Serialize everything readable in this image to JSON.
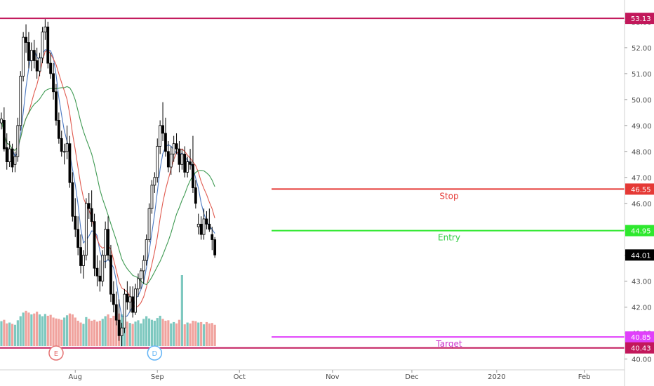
{
  "chart_data": {
    "type": "candlestick",
    "y_range": [
      39.8,
      53.35
    ],
    "y_ticks": [
      "40.00",
      "41.00",
      "42.00",
      "43.00",
      "44.00",
      "45.00",
      "46.00",
      "47.00",
      "48.00",
      "49.00",
      "50.00",
      "51.00",
      "52.00",
      "53.00"
    ],
    "x_ticks": [
      {
        "label": "Aug",
        "bar": 27
      },
      {
        "label": "Sep",
        "bar": 57
      },
      {
        "label": "Oct",
        "bar": 87
      },
      {
        "label": "Nov",
        "bar": 121
      },
      {
        "label": "Dec",
        "bar": 150
      },
      {
        "label": "2020",
        "bar": 181
      },
      {
        "label": "Feb",
        "bar": 213
      }
    ],
    "x_bar_span": 232,
    "price_tags": [
      {
        "value": "53.13",
        "color": "#c2185b"
      },
      {
        "value": "46.55",
        "color": "#e53935"
      },
      {
        "value": "44.95",
        "color": "#2ee82e"
      },
      {
        "value": "44.01",
        "color": "#000000"
      },
      {
        "value": "40.85",
        "color": "#e040fb"
      },
      {
        "value": "40.43",
        "color": "#c2185b"
      }
    ],
    "levels": [
      {
        "label": "",
        "value": 53.13,
        "color": "#c2185b",
        "full": true
      },
      {
        "label": "Stop",
        "value": 46.55,
        "color": "#e53935",
        "full": false
      },
      {
        "label": "Entry",
        "value": 44.95,
        "color": "#2ee82e",
        "full": false
      },
      {
        "label": "Target",
        "value": 40.85,
        "color": "#e040fb",
        "full": false
      },
      {
        "label": "",
        "value": 40.43,
        "color": "#c2185b",
        "full": true
      }
    ],
    "events": [
      {
        "label": "E",
        "bar": 20,
        "color": "#e57373"
      },
      {
        "label": "D",
        "bar": 56,
        "color": "#64b5f6"
      }
    ],
    "candles": [
      [
        49.1,
        49.5,
        48.85,
        49.25
      ],
      [
        49.2,
        49.7,
        48.0,
        48.1
      ],
      [
        48.15,
        48.7,
        47.3,
        47.6
      ],
      [
        47.6,
        48.4,
        47.4,
        48.1
      ],
      [
        48.1,
        48.3,
        47.2,
        47.4
      ],
      [
        47.5,
        48.0,
        47.2,
        47.8
      ],
      [
        47.8,
        49.3,
        47.6,
        49.0
      ],
      [
        49.0,
        51.1,
        48.8,
        50.9
      ],
      [
        50.9,
        52.6,
        50.7,
        52.4
      ],
      [
        52.4,
        52.9,
        51.8,
        52.2
      ],
      [
        52.2,
        52.6,
        51.2,
        51.5
      ],
      [
        51.5,
        52.2,
        51.1,
        51.9
      ],
      [
        51.9,
        52.3,
        51.2,
        51.5
      ],
      [
        51.5,
        52.0,
        50.8,
        51.1
      ],
      [
        51.1,
        51.8,
        50.9,
        51.6
      ],
      [
        51.6,
        52.8,
        51.4,
        52.6
      ],
      [
        52.6,
        53.1,
        52.3,
        52.8
      ],
      [
        52.8,
        53.0,
        51.2,
        51.4
      ],
      [
        51.4,
        51.8,
        50.8,
        51.0
      ],
      [
        51.0,
        51.4,
        50.0,
        50.3
      ],
      [
        50.3,
        50.6,
        49.0,
        49.2
      ],
      [
        49.2,
        49.5,
        48.3,
        48.5
      ],
      [
        48.5,
        48.8,
        47.8,
        48.0
      ],
      [
        48.0,
        48.3,
        47.5,
        48.0
      ],
      [
        48.0,
        49.0,
        47.7,
        48.3
      ],
      [
        48.3,
        48.6,
        46.6,
        46.8
      ],
      [
        46.8,
        47.2,
        45.3,
        45.5
      ],
      [
        45.5,
        46.2,
        44.7,
        45.0
      ],
      [
        45.0,
        45.5,
        44.0,
        44.3
      ],
      [
        44.3,
        44.8,
        43.3,
        43.6
      ],
      [
        43.6,
        44.2,
        43.1,
        44.0
      ],
      [
        44.0,
        46.2,
        43.8,
        46.0
      ],
      [
        46.0,
        46.4,
        45.4,
        45.8
      ],
      [
        45.8,
        46.5,
        45.1,
        45.3
      ],
      [
        45.3,
        45.6,
        43.2,
        43.5
      ],
      [
        43.5,
        44.0,
        42.8,
        43.2
      ],
      [
        43.2,
        43.8,
        42.6,
        43.0
      ],
      [
        43.0,
        44.2,
        42.8,
        44.0
      ],
      [
        44.0,
        45.3,
        43.5,
        45.0
      ],
      [
        45.0,
        45.5,
        43.8,
        44.0
      ],
      [
        44.0,
        44.4,
        42.2,
        42.5
      ],
      [
        42.5,
        43.0,
        41.8,
        42.1
      ],
      [
        42.1,
        42.6,
        41.3,
        41.5
      ],
      [
        41.5,
        42.3,
        40.7,
        40.9
      ],
      [
        40.9,
        41.4,
        40.5,
        41.2
      ],
      [
        41.2,
        42.7,
        41.0,
        42.5
      ],
      [
        42.5,
        43.0,
        41.9,
        42.2
      ],
      [
        42.2,
        42.8,
        41.8,
        42.4
      ],
      [
        42.4,
        42.8,
        41.6,
        41.8
      ],
      [
        41.8,
        42.9,
        41.7,
        42.7
      ],
      [
        42.7,
        43.3,
        42.4,
        43.1
      ],
      [
        43.1,
        43.5,
        42.7,
        43.4
      ],
      [
        43.4,
        44.0,
        42.9,
        43.8
      ],
      [
        43.8,
        44.8,
        43.6,
        44.6
      ],
      [
        44.6,
        46.0,
        44.5,
        45.8
      ],
      [
        45.8,
        46.9,
        45.6,
        46.7
      ],
      [
        46.7,
        47.2,
        46.4,
        47.0
      ],
      [
        47.0,
        48.5,
        46.8,
        48.2
      ],
      [
        48.2,
        49.2,
        47.9,
        49.0
      ],
      [
        49.0,
        49.9,
        48.4,
        48.7
      ],
      [
        48.7,
        49.3,
        47.8,
        48.0
      ],
      [
        48.0,
        48.4,
        47.2,
        47.4
      ],
      [
        47.4,
        48.2,
        47.1,
        47.9
      ],
      [
        47.9,
        48.6,
        47.6,
        48.3
      ],
      [
        48.3,
        48.7,
        47.9,
        48.1
      ],
      [
        48.1,
        48.4,
        47.2,
        47.5
      ],
      [
        47.5,
        48.1,
        47.3,
        47.9
      ],
      [
        47.9,
        48.2,
        47.0,
        47.2
      ],
      [
        47.2,
        47.8,
        47.0,
        47.6
      ],
      [
        47.6,
        48.1,
        47.3,
        47.5
      ],
      [
        47.5,
        48.6,
        46.4,
        46.6
      ],
      [
        46.6,
        46.9,
        45.8,
        46.0
      ],
      [
        45.1,
        45.6,
        44.8,
        45.2
      ],
      [
        45.2,
        45.5,
        44.6,
        44.8
      ],
      [
        44.8,
        45.8,
        44.6,
        45.4
      ],
      [
        45.4,
        45.7,
        45.0,
        45.2
      ],
      [
        45.2,
        45.8,
        44.9,
        45.0
      ],
      [
        44.8,
        45.1,
        44.2,
        44.6
      ],
      [
        44.6,
        44.7,
        43.9,
        44.01
      ]
    ],
    "volumes": [
      55,
      58,
      50,
      52,
      49,
      47,
      57,
      66,
      74,
      78,
      74,
      70,
      72,
      76,
      70,
      66,
      71,
      67,
      69,
      63,
      61,
      60,
      58,
      63,
      68,
      72,
      70,
      63,
      56,
      52,
      49,
      64,
      60,
      56,
      58,
      54,
      56,
      60,
      66,
      70,
      62,
      67,
      72,
      72,
      70,
      68,
      54,
      51,
      49,
      54,
      57,
      50,
      60,
      66,
      61,
      58,
      56,
      62,
      67,
      60,
      56,
      57,
      50,
      53,
      50,
      58,
      157,
      48,
      52,
      50,
      56,
      55,
      52,
      53,
      48,
      53,
      50,
      51,
      47
    ],
    "volume_color_up": "#7dc8bf",
    "volume_color_down": "#f0a29d",
    "candle_color": "#000000",
    "sma_colors": [
      "#4a78c2",
      "#e05a4f",
      "#3f9a53"
    ],
    "sma_periods": [
      5,
      10,
      20
    ]
  }
}
